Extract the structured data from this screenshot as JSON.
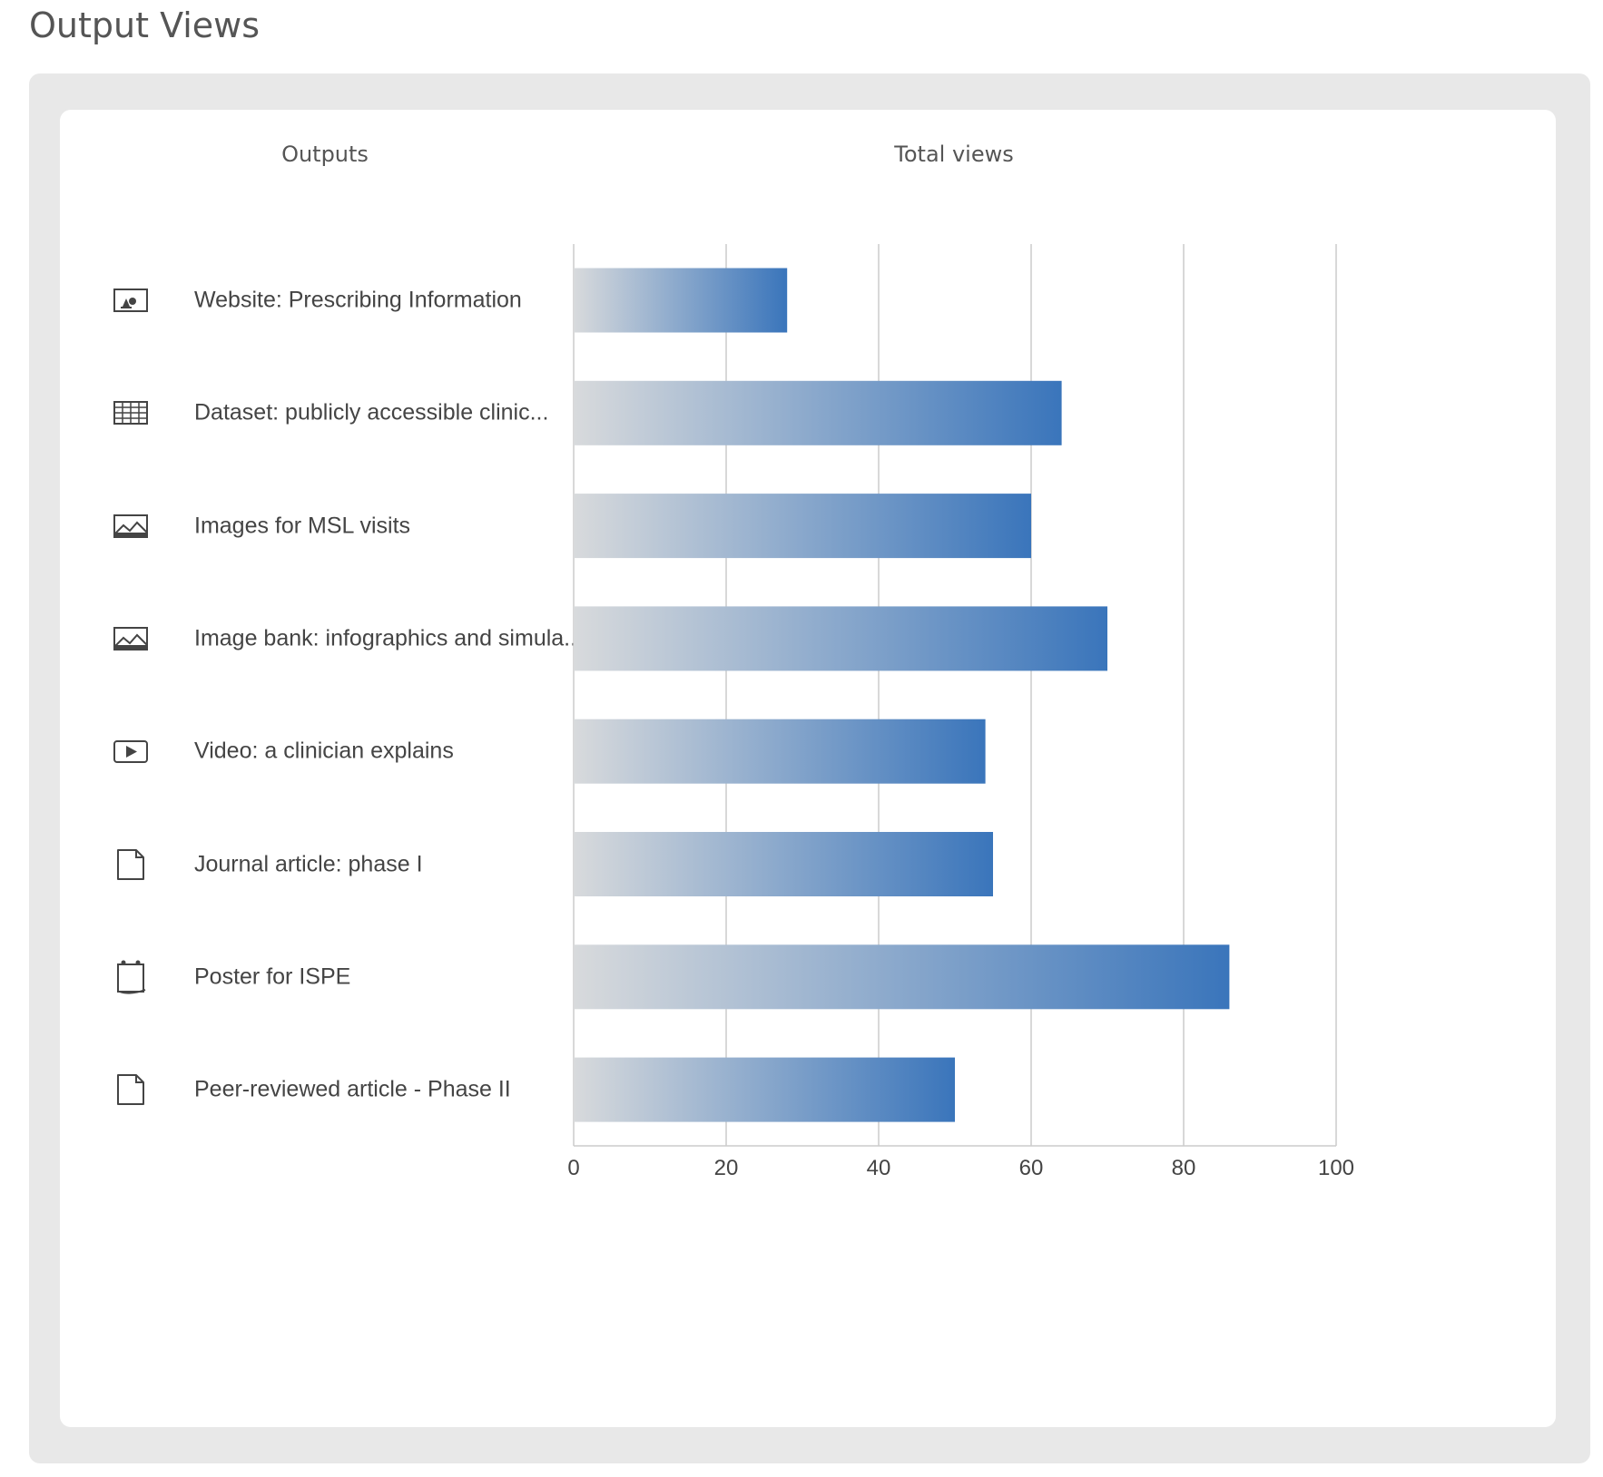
{
  "page": {
    "title": "Output Views"
  },
  "table": {
    "outputs_header": "Outputs",
    "views_header": "Total views"
  },
  "rows": [
    {
      "label": "Website: Prescribing Information",
      "icon": "website-icon"
    },
    {
      "label": "Dataset: publicly accessible clinic...",
      "icon": "table-grid-icon"
    },
    {
      "label": "Images for MSL visits",
      "icon": "image-icon"
    },
    {
      "label": "Image bank: infographics and simula...",
      "icon": "image-icon"
    },
    {
      "label": "Video: a clinician explains",
      "icon": "video-play-icon"
    },
    {
      "label": "Journal article: phase I",
      "icon": "document-icon"
    },
    {
      "label": "Poster for ISPE",
      "icon": "poster-icon"
    },
    {
      "label": "Peer-reviewed article - Phase II",
      "icon": "document-icon"
    }
  ],
  "chart_data": {
    "type": "bar",
    "orientation": "horizontal",
    "categories": [
      "Website: Prescribing Information",
      "Dataset: publicly accessible clinic...",
      "Images for MSL visits",
      "Image bank: infographics and simula...",
      "Video: a clinician explains",
      "Journal article: phase I",
      "Poster for ISPE",
      "Peer-reviewed article - Phase II"
    ],
    "values": [
      28,
      64,
      60,
      70,
      54,
      55,
      86,
      50
    ],
    "xlim": [
      0,
      100
    ],
    "xticks": [
      "0",
      "20",
      "40",
      "60",
      "80",
      "100"
    ],
    "grid": true,
    "colors": {
      "bar_start": "#d8dadc",
      "bar_end": "#3a75bb",
      "grid": "#cccccc"
    }
  }
}
